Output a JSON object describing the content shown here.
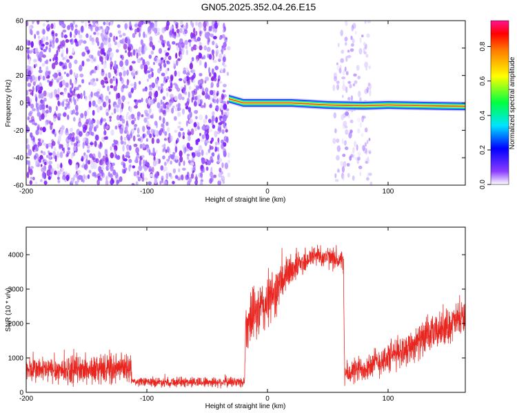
{
  "title": "GN05.2025.352.04.26.E15",
  "chart_data": [
    {
      "type": "heatmap",
      "xlabel": "Height of straight line (km)",
      "ylabel": "Frequency (Hz)",
      "xlim": [
        -200,
        164
      ],
      "ylim": [
        -60,
        60
      ],
      "x_ticks": [
        {
          "value": -200,
          "label": "-200"
        },
        {
          "value": -100,
          "label": "-100"
        },
        {
          "value": 0,
          "label": "0"
        },
        {
          "value": 100,
          "label": "100"
        }
      ],
      "y_ticks": [
        {
          "value": 60,
          "label": "60"
        },
        {
          "value": 40,
          "label": "40"
        },
        {
          "value": 20,
          "label": "20"
        },
        {
          "value": 0,
          "label": "0"
        },
        {
          "value": -20,
          "label": "-20"
        },
        {
          "value": -40,
          "label": "-40"
        },
        {
          "value": -60,
          "label": "-60"
        }
      ],
      "colorbar": {
        "label": "Normalized spectral amplitude",
        "range": [
          0,
          0.95
        ],
        "ticks": [
          {
            "value": 0.0,
            "label": "0.0"
          },
          {
            "value": 0.2,
            "label": "0.2"
          },
          {
            "value": 0.4,
            "label": "0.4"
          },
          {
            "value": 0.6,
            "label": "0.6"
          },
          {
            "value": 0.8,
            "label": "0.8"
          }
        ]
      },
      "regions": [
        {
          "x_range": [
            -200,
            -32
          ],
          "description": "broadband noise",
          "amplitude": 0.12
        },
        {
          "x_range": [
            55,
            86
          ],
          "description": "sparse noise",
          "amplitude": 0.05
        }
      ],
      "signal_line": {
        "x": [
          -32,
          -20,
          0,
          20,
          50,
          80,
          100,
          130,
          164
        ],
        "frequency": [
          3,
          0,
          0,
          0,
          -1.5,
          -2,
          -1.5,
          -2,
          -2.5
        ],
        "peak_amplitude": 0.9
      }
    },
    {
      "type": "line",
      "xlabel": "Height of straight line (km)",
      "ylabel": "SNR (10 * v/v)",
      "xlim": [
        -200,
        164
      ],
      "ylim": [
        0,
        4800
      ],
      "x_ticks": [
        {
          "value": -200,
          "label": "-200"
        },
        {
          "value": -100,
          "label": "-100"
        },
        {
          "value": 0,
          "label": "0"
        },
        {
          "value": 100,
          "label": "100"
        }
      ],
      "y_ticks": [
        {
          "value": 0,
          "label": "0"
        },
        {
          "value": 1000,
          "label": "1000"
        },
        {
          "value": 2000,
          "label": "2000"
        },
        {
          "value": 3000,
          "label": "3000"
        },
        {
          "value": 4000,
          "label": "4000"
        }
      ],
      "series_color": "#e8251f",
      "x": [
        -200,
        -150,
        -113,
        -112,
        -60,
        -19,
        -18,
        0,
        20,
        40,
        63,
        64,
        100,
        164
      ],
      "y": [
        650,
        650,
        700,
        300,
        300,
        300,
        2000,
        2600,
        3600,
        4000,
        3800,
        500,
        1000,
        2200
      ],
      "spread": [
        350,
        400,
        400,
        120,
        150,
        150,
        700,
        800,
        450,
        300,
        300,
        350,
        450,
        500
      ]
    }
  ]
}
